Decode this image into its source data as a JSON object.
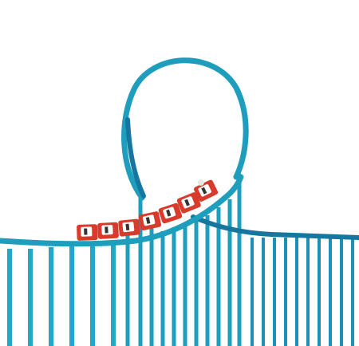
{
  "scene": {
    "subject": "roller-coaster",
    "colors": {
      "background": "#ffffff",
      "track": "#1e9dbd",
      "track_dark": "#1576a0",
      "supports": "#23a7c8",
      "car_body": "#d83a2b",
      "car_seat": "#ffffff",
      "rider": "#e7e7e7"
    },
    "cars": 7
  }
}
